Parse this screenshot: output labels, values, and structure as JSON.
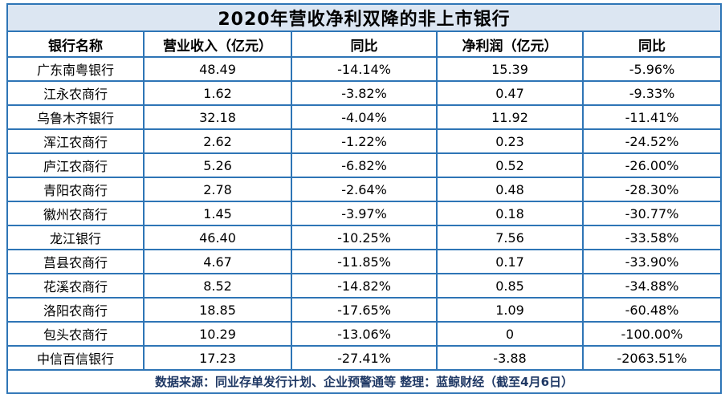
{
  "chart_data": {
    "type": "table",
    "title": "2020年营收净利双降的非上市银行",
    "columns": [
      "银行名称",
      "营业收入（亿元）",
      "同比",
      "净利润（亿元）",
      "同比"
    ],
    "rows": [
      [
        "广东南粤银行",
        "48.49",
        "-14.14%",
        "15.39",
        "-5.96%"
      ],
      [
        "江永农商行",
        "1.62",
        "-3.82%",
        "0.47",
        "-9.33%"
      ],
      [
        "乌鲁木齐银行",
        "32.18",
        "-4.04%",
        "11.92",
        "-11.41%"
      ],
      [
        "浑江农商行",
        "2.62",
        "-1.22%",
        "0.23",
        "-24.52%"
      ],
      [
        "庐江农商行",
        "5.26",
        "-6.82%",
        "0.52",
        "-26.00%"
      ],
      [
        "青阳农商行",
        "2.78",
        "-2.64%",
        "0.48",
        "-28.30%"
      ],
      [
        "徽州农商行",
        "1.45",
        "-3.97%",
        "0.18",
        "-30.77%"
      ],
      [
        "龙江银行",
        "46.40",
        "-10.25%",
        "7.56",
        "-33.58%"
      ],
      [
        "莒县农商行",
        "4.67",
        "-11.85%",
        "0.17",
        "-33.90%"
      ],
      [
        "花溪农商行",
        "8.52",
        "-14.82%",
        "0.85",
        "-34.88%"
      ],
      [
        "洛阳农商行",
        "18.85",
        "-17.65%",
        "1.09",
        "-60.48%"
      ],
      [
        "包头农商行",
        "10.29",
        "-13.06%",
        "0",
        "-100.00%"
      ],
      [
        "中信百信银行",
        "17.23",
        "-27.41%",
        "-3.88",
        "-2063.51%"
      ]
    ],
    "footer": "数据来源：同业存单发行计划、企业预警通等 整理：蓝鲸财经（截至4月6日）",
    "layout": {
      "grid": "on",
      "all_cells_centered": true
    }
  },
  "colors": {
    "border": "#2e75b6",
    "title_background": "#dce6f2",
    "body_background": "#ffffff",
    "text": "#000000",
    "footer_text": "#1f3864"
  }
}
